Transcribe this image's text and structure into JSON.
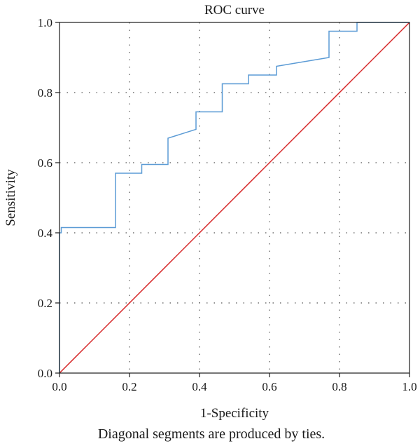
{
  "chart_data": {
    "type": "line",
    "title": "ROC curve",
    "xlabel": "1-Specificity",
    "ylabel": "Sensitivity",
    "footnote": "Diagonal segments are produced by ties.",
    "xlim": [
      0.0,
      1.0
    ],
    "ylim": [
      0.0,
      1.0
    ],
    "x_ticks": [
      0.0,
      0.2,
      0.4,
      0.6,
      0.8,
      1.0
    ],
    "y_ticks": [
      0.0,
      0.2,
      0.4,
      0.6,
      0.8,
      1.0
    ],
    "x_tick_labels": [
      "0.0",
      "0.2",
      "0.4",
      "0.6",
      "0.8",
      "1.0"
    ],
    "y_tick_labels": [
      "0.0",
      "0.2",
      "0.4",
      "0.6",
      "0.8",
      "1.0"
    ],
    "grid": "dotted",
    "series": [
      {
        "color": "#5b9bd5",
        "x": [
          0.0,
          0.0,
          0.005,
          0.005,
          0.16,
          0.16,
          0.235,
          0.235,
          0.31,
          0.31,
          0.39,
          0.39,
          0.465,
          0.465,
          0.54,
          0.54,
          0.62,
          0.62,
          0.77,
          0.77,
          0.85,
          0.85,
          1.0
        ],
        "y": [
          0.0,
          0.4,
          0.4,
          0.415,
          0.415,
          0.57,
          0.57,
          0.595,
          0.595,
          0.67,
          0.695,
          0.745,
          0.745,
          0.825,
          0.825,
          0.85,
          0.85,
          0.875,
          0.9,
          0.975,
          0.975,
          1.0,
          1.0
        ]
      },
      {
        "color": "#d62728",
        "x": [
          0.0,
          1.0
        ],
        "y": [
          0.0,
          1.0
        ]
      }
    ]
  }
}
